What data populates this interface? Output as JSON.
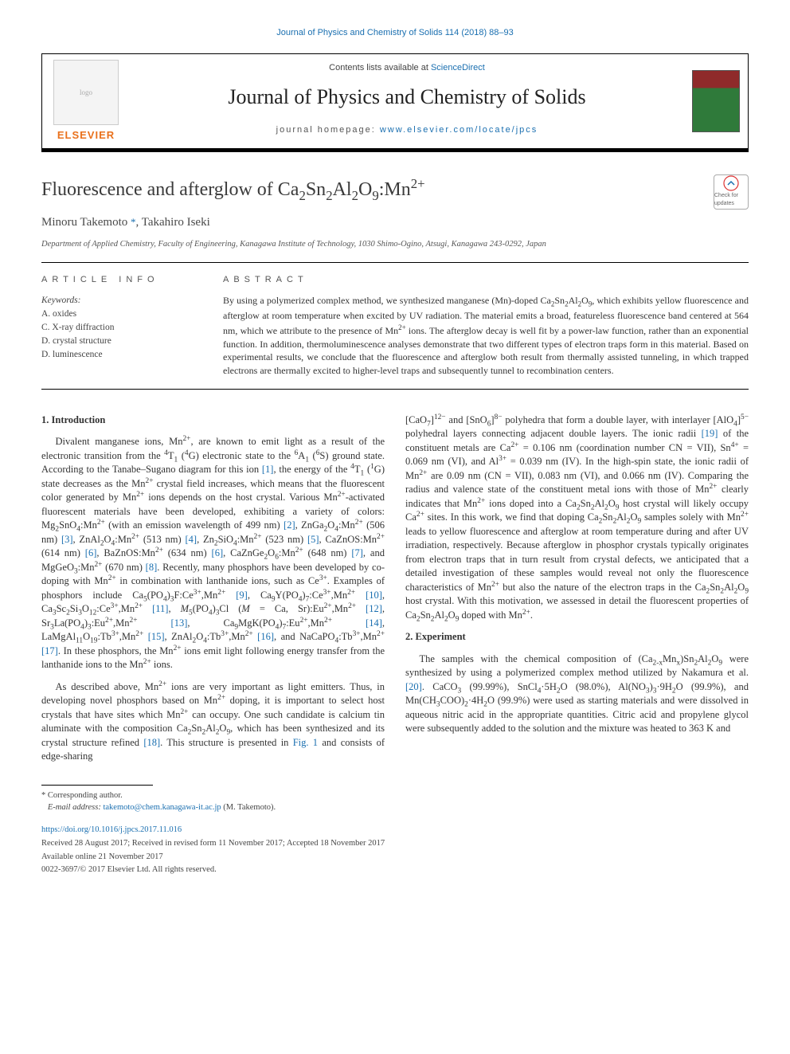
{
  "colors": {
    "link": "#1a6fb0",
    "elsevier_orange": "#e9711c",
    "text": "#333333",
    "rule": "#000000"
  },
  "running_head": "Journal of Physics and Chemistry of Solids 114 (2018) 88–93",
  "masthead": {
    "contents_prefix": "Contents lists available at ",
    "contents_link": "ScienceDirect",
    "journal_title": "Journal of Physics and Chemistry of Solids",
    "homepage_prefix": "journal homepage: ",
    "homepage_url": "www.elsevier.com/locate/jpcs",
    "publisher_logo": "ELSEVIER"
  },
  "check_badge": "Check for updates",
  "article": {
    "title_html": "Fluorescence and afterglow of Ca<sub>2</sub>Sn<sub>2</sub>Al<sub>2</sub>O<sub>9</sub>:Mn<sup>2+</sup>",
    "authors_html": "Minoru Takemoto <span class=\"corr\">*</span>, Takahiro Iseki",
    "affiliation": "Department of Applied Chemistry, Faculty of Engineering, Kanagawa Institute of Technology, 1030 Shimo-Ogino, Atsugi, Kanagawa 243-0292, Japan"
  },
  "info": {
    "heading": "ARTICLE INFO",
    "kw_label": "Keywords:",
    "keywords": [
      "A. oxides",
      "C. X-ray diffraction",
      "D. crystal structure",
      "D. luminescence"
    ]
  },
  "abstract": {
    "heading": "ABSTRACT",
    "text_html": "By using a polymerized complex method, we synthesized manganese (Mn)-doped Ca<sub>2</sub>Sn<sub>2</sub>Al<sub>2</sub>O<sub>9</sub>, which exhibits yellow fluorescence and afterglow at room temperature when excited by UV radiation. The material emits a broad, featureless fluorescence band centered at 564 nm, which we attribute to the presence of Mn<sup>2+</sup> ions. The afterglow decay is well fit by a power-law function, rather than an exponential function. In addition, thermoluminescence analyses demonstrate that two different types of electron traps form in this material. Based on experimental results, we conclude that the fluorescence and afterglow both result from thermally assisted tunneling, in which trapped electrons are thermally excited to higher-level traps and subsequently tunnel to recombination centers."
  },
  "sections": {
    "s1_title": "1.  Introduction",
    "s1_p1_html": "Divalent manganese ions, Mn<sup>2+</sup>, are known to emit light as a result of the electronic transition from the <sup>4</sup>T<sub>1</sub> (<sup>4</sup>G) electronic state to the <sup>6</sup>A<sub>1</sub> (<sup>6</sup>S) ground state. According to the Tanabe–Sugano diagram for this ion <span class=\"cite\">[1]</span>, the energy of the <sup>4</sup>T<sub>1</sub> (<sup>1</sup>G) state decreases as the Mn<sup>2+</sup> crystal field increases, which means that the fluorescent color generated by Mn<sup>2+</sup> ions depends on the host crystal. Various Mn<sup>2+</sup>-activated fluorescent materials have been developed, exhibiting a variety of colors: Mg<sub>2</sub>SnO<sub>4</sub>:Mn<sup>2+</sup> (with an emission wavelength of 499 nm) <span class=\"cite\">[2]</span>, ZnGa<sub>2</sub>O<sub>4</sub>:Mn<sup>2+</sup> (506 nm) <span class=\"cite\">[3]</span>, ZnAl<sub>2</sub>O<sub>4</sub>:Mn<sup>2+</sup> (513 nm) <span class=\"cite\">[4]</span>, Zn<sub>2</sub>SiO<sub>4</sub>:Mn<sup>2+</sup> (523 nm) <span class=\"cite\">[5]</span>, CaZnOS:Mn<sup>2+</sup> (614 nm) <span class=\"cite\">[6]</span>, BaZnOS:Mn<sup>2+</sup> (634 nm) <span class=\"cite\">[6]</span>, CaZnGe<sub>2</sub>O<sub>6</sub>:Mn<sup>2+</sup> (648 nm) <span class=\"cite\">[7]</span>, and MgGeO<sub>3</sub>:Mn<sup>2+</sup> (670 nm) <span class=\"cite\">[8]</span>. Recently, many phosphors have been developed by co-doping with Mn<sup>2+</sup> in combination with lanthanide ions, such as Ce<sup>3+</sup>. Examples of phosphors include Ca<sub>5</sub>(PO<sub>4</sub>)<sub>3</sub>F:Ce<sup>3+</sup>,Mn<sup>2+</sup> <span class=\"cite\">[9]</span>, Ca<sub>9</sub>Y(PO<sub>4</sub>)<sub>7</sub>:Ce<sup>3+</sup>,Mn<sup>2+</sup> <span class=\"cite\">[10]</span>, Ca<sub>3</sub>Sc<sub>2</sub>Si<sub>3</sub>O<sub>12</sub>:Ce<sup>3+</sup>,Mn<sup>2+</sup> <span class=\"cite\">[11]</span>, <i>M</i><sub>5</sub>(PO<sub>4</sub>)<sub>3</sub>Cl (<i>M</i> = Ca, Sr):Eu<sup>2+</sup>,Mn<sup>2+</sup> <span class=\"cite\">[12]</span>, Sr<sub>3</sub>La(PO<sub>4</sub>)<sub>3</sub>:Eu<sup>2+</sup>,Mn<sup>2+</sup> <span class=\"cite\">[13]</span>, Ca<sub>9</sub>MgK(PO<sub>4</sub>)<sub>7</sub>:Eu<sup>2+</sup>,Mn<sup>2+</sup> <span class=\"cite\">[14]</span>, LaMgAl<sub>11</sub>O<sub>19</sub>:Tb<sup>3+</sup>,Mn<sup>2+</sup> <span class=\"cite\">[15]</span>, ZnAl<sub>2</sub>O<sub>4</sub>:Tb<sup>3+</sup>,Mn<sup>2+</sup> <span class=\"cite\">[16]</span>, and NaCaPO<sub>4</sub>:Tb<sup>3+</sup>,Mn<sup>2+</sup> <span class=\"cite\">[17]</span>. In these phosphors, the Mn<sup>2+</sup> ions emit light following energy transfer from the lanthanide ions to the Mn<sup>2+</sup> ions.",
    "s1_p2_html": "As described above, Mn<sup>2+</sup> ions are very important as light emitters. Thus, in developing novel phosphors based on Mn<sup>2+</sup> doping, it is important to select host crystals that have sites which Mn<sup>2+</sup> can occupy. One such candidate is calcium tin aluminate with the composition Ca<sub>2</sub>Sn<sub>2</sub>Al<sub>2</sub>O<sub>9</sub>, which has been synthesized and its crystal structure refined <span class=\"cite\">[18]</span>. This structure is presented in <span class=\"cite\">Fig. 1</span> and consists of edge-sharing",
    "s1_p3_html": "[CaO<sub>7</sub>]<sup>12−</sup> and [SnO<sub>6</sub>]<sup>8−</sup> polyhedra that form a double layer, with interlayer [AlO<sub>4</sub>]<sup>5−</sup> polyhedral layers connecting adjacent double layers. The ionic radii <span class=\"cite\">[19]</span> of the constituent metals are Ca<sup>2+</sup> = 0.106 nm (coordination number CN = VII), Sn<sup>4+</sup> = 0.069 nm (VI), and Al<sup>3+</sup> = 0.039 nm (IV). In the high-spin state, the ionic radii of Mn<sup>2+</sup> are 0.09 nm (CN = VII), 0.083 nm (VI), and 0.066 nm (IV). Comparing the radius and valence state of the constituent metal ions with those of Mn<sup>2+</sup> clearly indicates that Mn<sup>2+</sup> ions doped into a Ca<sub>2</sub>Sn<sub>2</sub>Al<sub>2</sub>O<sub>9</sub> host crystal will likely occupy Ca<sup>2+</sup> sites. In this work, we find that doping Ca<sub>2</sub>Sn<sub>2</sub>Al<sub>2</sub>O<sub>9</sub> samples solely with Mn<sup>2+</sup> leads to yellow fluorescence and afterglow at room temperature during and after UV irradiation, respectively. Because afterglow in phosphor crystals typically originates from electron traps that in turn result from crystal defects, we anticipated that a detailed investigation of these samples would reveal not only the fluorescence characteristics of Mn<sup>2+</sup> but also the nature of the electron traps in the Ca<sub>2</sub>Sn<sub>2</sub>Al<sub>2</sub>O<sub>9</sub> host crystal. With this motivation, we assessed in detail the fluorescent properties of Ca<sub>2</sub>Sn<sub>2</sub>Al<sub>2</sub>O<sub>9</sub> doped with Mn<sup>2+</sup>.",
    "s2_title": "2.  Experiment",
    "s2_p1_html": "The samples with the chemical composition of (Ca<sub>2-x</sub>Mn<sub>x</sub>)Sn<sub>2</sub>Al<sub>2</sub>O<sub>9</sub> were synthesized by using a polymerized complex method utilized by Nakamura et al. <span class=\"cite\">[20]</span>. CaCO<sub>3</sub> (99.99%), SnCl<sub>4</sub>·5H<sub>2</sub>O (98.0%), Al(NO<sub>3</sub>)<sub>3</sub>·9H<sub>2</sub>O (99.9%), and Mn(CH<sub>3</sub>COO)<sub>2</sub>·4H<sub>2</sub>O (99.9%) were used as starting materials and were dissolved in aqueous nitric acid in the appropriate quantities. Citric acid and propylene glycol were subsequently added to the solution and the mixture was heated to 363 K and"
  },
  "footnote": {
    "corr_label": "* Corresponding author.",
    "email_label": "E-mail address: ",
    "email": "takemoto@chem.kanagawa-it.ac.jp",
    "email_suffix": " (M. Takemoto)."
  },
  "footer": {
    "doi": "https://doi.org/10.1016/j.jpcs.2017.11.016",
    "history": "Received 28 August 2017; Received in revised form 11 November 2017; Accepted 18 November 2017",
    "online": "Available online 21 November 2017",
    "copyright": "0022-3697/© 2017 Elsevier Ltd. All rights reserved."
  }
}
